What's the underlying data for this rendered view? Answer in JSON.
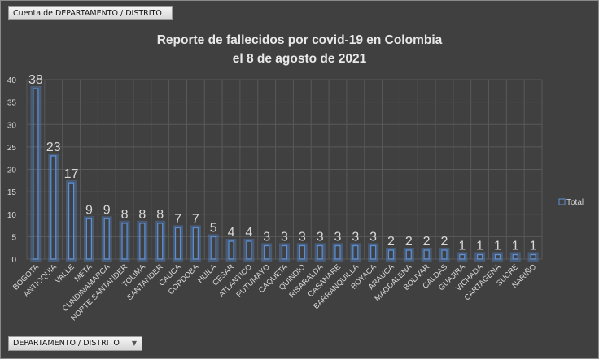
{
  "field_button": "Cuenta de DEPARTAMENTO / DISTRITO",
  "axis_field_button": "DEPARTAMENTO / DISTRITO",
  "chart_data": {
    "type": "bar",
    "title": [
      "Reporte de fallecidos por covid-19 en Colombia",
      "el 8 de agosto de 2021"
    ],
    "categories": [
      "BOGOTA",
      "ANTIOQUIA",
      "VALLE",
      "META",
      "CUNDINAMARCA",
      "NORTE SANTANDER",
      "TOLIMA",
      "SANTANDER",
      "CAUCA",
      "CORDOBA",
      "HUILA",
      "CESAR",
      "ATLANTICO",
      "PUTUMAYO",
      "CAQUETA",
      "QUINDIO",
      "RISARALDA",
      "CASANARE",
      "BARRANQUILLA",
      "BOYACA",
      "ARAUCA",
      "MAGDALENA",
      "BOLIVAR",
      "CALDAS",
      "GUAJIRA",
      "VICHADA",
      "CARTAGENA",
      "SUCRE",
      "NARIÑO"
    ],
    "series": [
      {
        "name": "Total",
        "values": [
          38,
          23,
          17,
          9,
          9,
          8,
          8,
          8,
          7,
          7,
          5,
          4,
          4,
          3,
          3,
          3,
          3,
          3,
          3,
          3,
          2,
          2,
          2,
          2,
          1,
          1,
          1,
          1,
          1
        ]
      }
    ],
    "yticks": [
      0,
      5,
      10,
      15,
      20,
      25,
      30,
      35,
      40
    ],
    "ylim": [
      0,
      40
    ],
    "grid": true,
    "legend": "right",
    "colors": {
      "bar": "#5b8fd6",
      "background": "#404040",
      "grid": "#595959",
      "text": "#d9d9d9"
    }
  }
}
